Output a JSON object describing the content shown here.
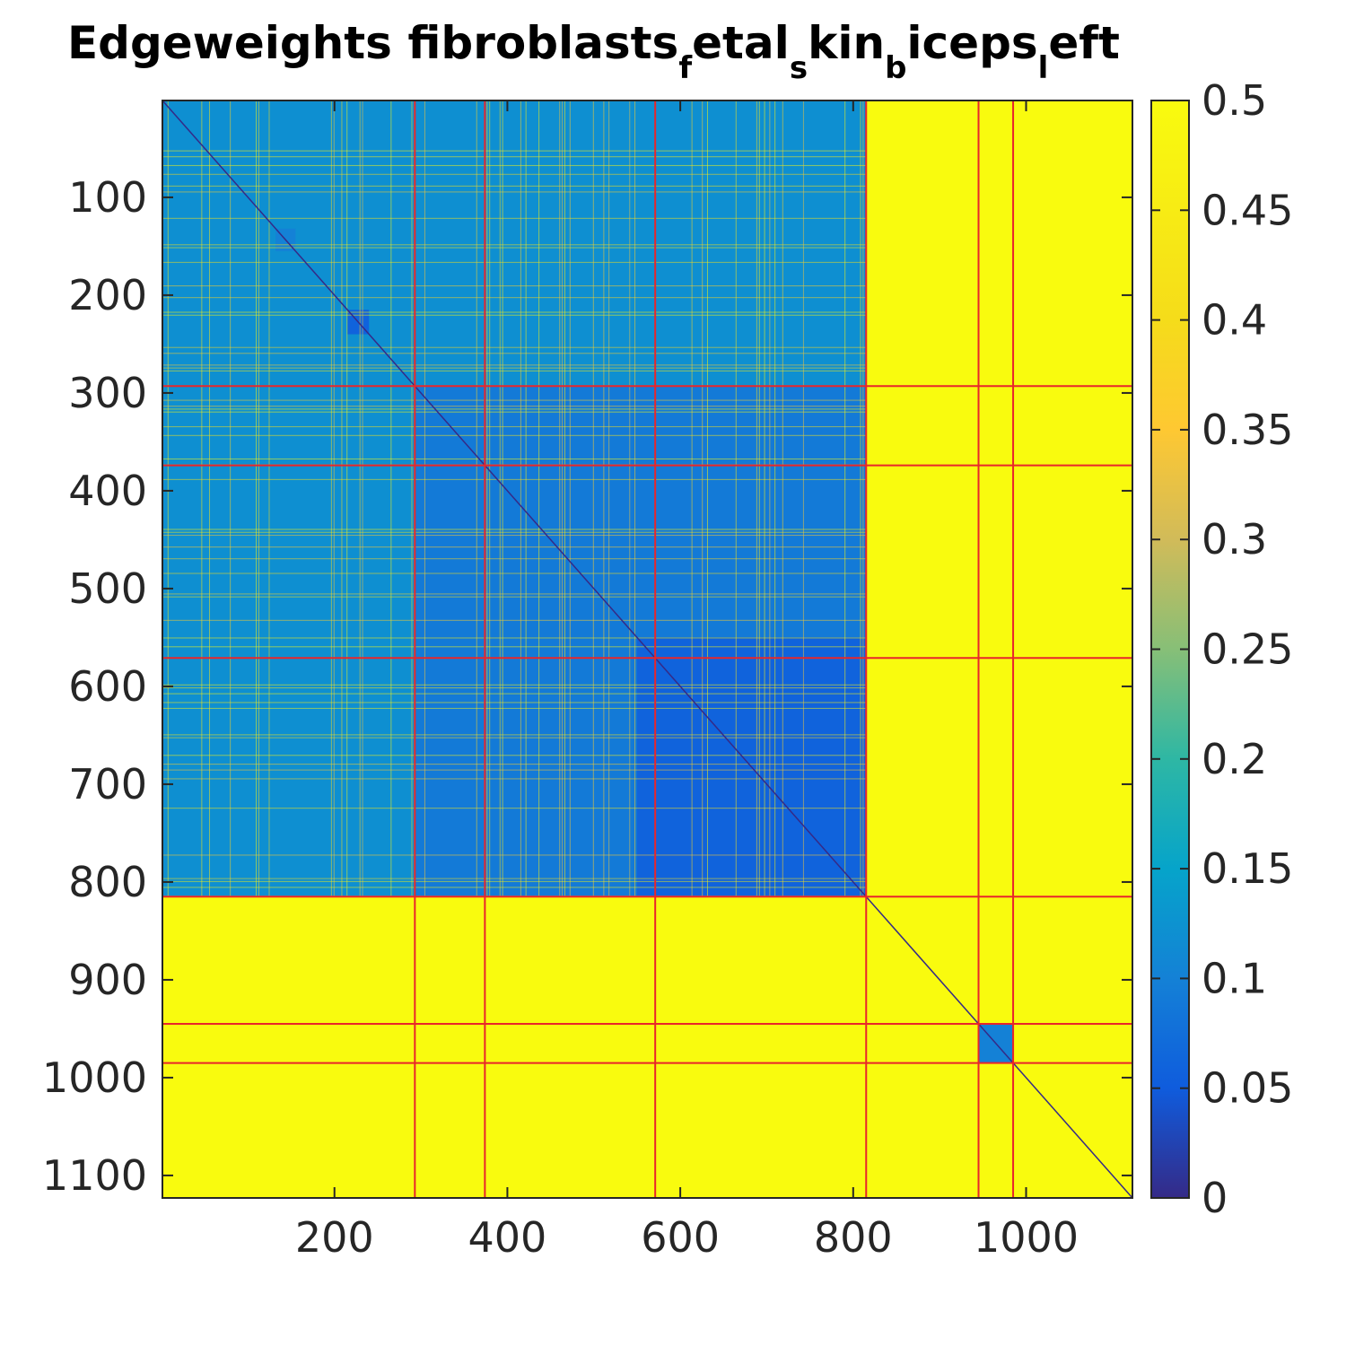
{
  "chart_data": {
    "type": "heatmap",
    "title": "Edgeweights fibroblasts_fetal_skin_biceps_left",
    "title_parts": [
      {
        "text": "Edgeweights fibroblasts",
        "sub": false
      },
      {
        "text": "f",
        "sub": true
      },
      {
        "text": "etal",
        "sub": false
      },
      {
        "text": "s",
        "sub": true
      },
      {
        "text": "kin",
        "sub": false
      },
      {
        "text": "b",
        "sub": true
      },
      {
        "text": "iceps",
        "sub": false
      },
      {
        "text": "l",
        "sub": true
      },
      {
        "text": "eft",
        "sub": false
      }
    ],
    "xlim": [
      1,
      1123
    ],
    "ylim": [
      1,
      1123
    ],
    "x_reversed": false,
    "y_reversed": true,
    "x_ticks": [
      200,
      400,
      600,
      800,
      1000
    ],
    "x_tick_labels": [
      "200",
      "400",
      "600",
      "800",
      "1000"
    ],
    "y_ticks": [
      100,
      200,
      300,
      400,
      500,
      600,
      700,
      800,
      900,
      1000,
      1100
    ],
    "y_tick_labels": [
      "100",
      "200",
      "300",
      "400",
      "500",
      "600",
      "700",
      "800",
      "900",
      "1000",
      "1100"
    ],
    "colorbar": {
      "colormap": "parula",
      "clim": [
        0,
        0.5
      ],
      "ticks": [
        0,
        0.05,
        0.1,
        0.15,
        0.2,
        0.25,
        0.3,
        0.35,
        0.4,
        0.45,
        0.5
      ],
      "tick_labels": [
        "0",
        "0.05",
        "0.1",
        "0.15",
        "0.2",
        "0.25",
        "0.3",
        "0.35",
        "0.4",
        "0.45",
        "0.5"
      ]
    },
    "group_boundaries": [
      293,
      374,
      571,
      815,
      945,
      985
    ],
    "boundary_color": "#e8262b",
    "cluster_blocks": [
      {
        "range": [
          1,
          815
        ],
        "value": 0.12
      },
      {
        "range": [
          293,
          815
        ],
        "value": 0.09
      },
      {
        "range": [
          550,
          815
        ],
        "value": 0.06
      },
      {
        "range": [
          945,
          985
        ],
        "value": 0.1
      },
      {
        "range": [
          132,
          155
        ],
        "value": 0.1
      },
      {
        "range": [
          215,
          240
        ],
        "value": 0.06
      }
    ],
    "background_value": 0.5,
    "diagonal_value": 0.0,
    "grid": false
  }
}
